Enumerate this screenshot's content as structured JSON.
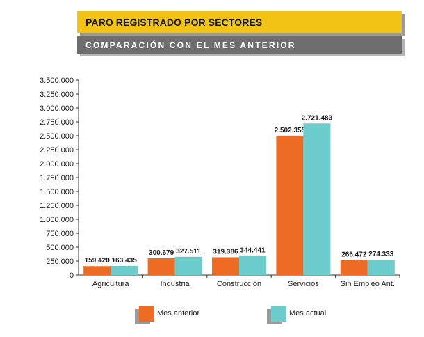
{
  "header": {
    "title": "PARO REGISTRADO POR SECTORES",
    "subtitle": "COMPARACIÓN CON EL MES ANTERIOR"
  },
  "colors": {
    "title_bg": "#f2c314",
    "subtitle_bg": "#6e6e6e",
    "series_prev": "#ee6b24",
    "series_curr": "#6ccbcb"
  },
  "chart_data": {
    "type": "bar",
    "title": "PARO REGISTRADO POR SECTORES",
    "xlabel": "",
    "ylabel": "",
    "ylim": [
      0,
      3500000
    ],
    "yticks": [
      0,
      250000,
      500000,
      750000,
      1000000,
      1250000,
      1500000,
      1750000,
      2000000,
      2250000,
      2500000,
      2750000,
      3000000,
      3250000,
      3500000
    ],
    "ytick_labels": [
      "0",
      "250.000",
      "500.000",
      "750.000",
      "1.000.000",
      "1.250.000",
      "1.500.000",
      "1.750.000",
      "2.000.000",
      "2.250.000",
      "2.500.000",
      "2.750.000",
      "3.000.000",
      "3.250.000",
      "3.500.000"
    ],
    "categories": [
      "Agricultura",
      "Industria",
      "Construcción",
      "Servicios",
      "Sin Empleo Ant."
    ],
    "series": [
      {
        "name": "Mes anterior",
        "values": [
          159420,
          300679,
          319386,
          2502355,
          266472
        ],
        "labels": [
          "159.420",
          "300.679",
          "319.386",
          "2.502.355",
          "266.472"
        ]
      },
      {
        "name": "Mes actual",
        "values": [
          163435,
          327511,
          344441,
          2721483,
          274333
        ],
        "labels": [
          "163.435",
          "327.511",
          "344.441",
          "2.721.483",
          "274.333"
        ]
      }
    ],
    "grid": false,
    "legend": "bottom"
  }
}
